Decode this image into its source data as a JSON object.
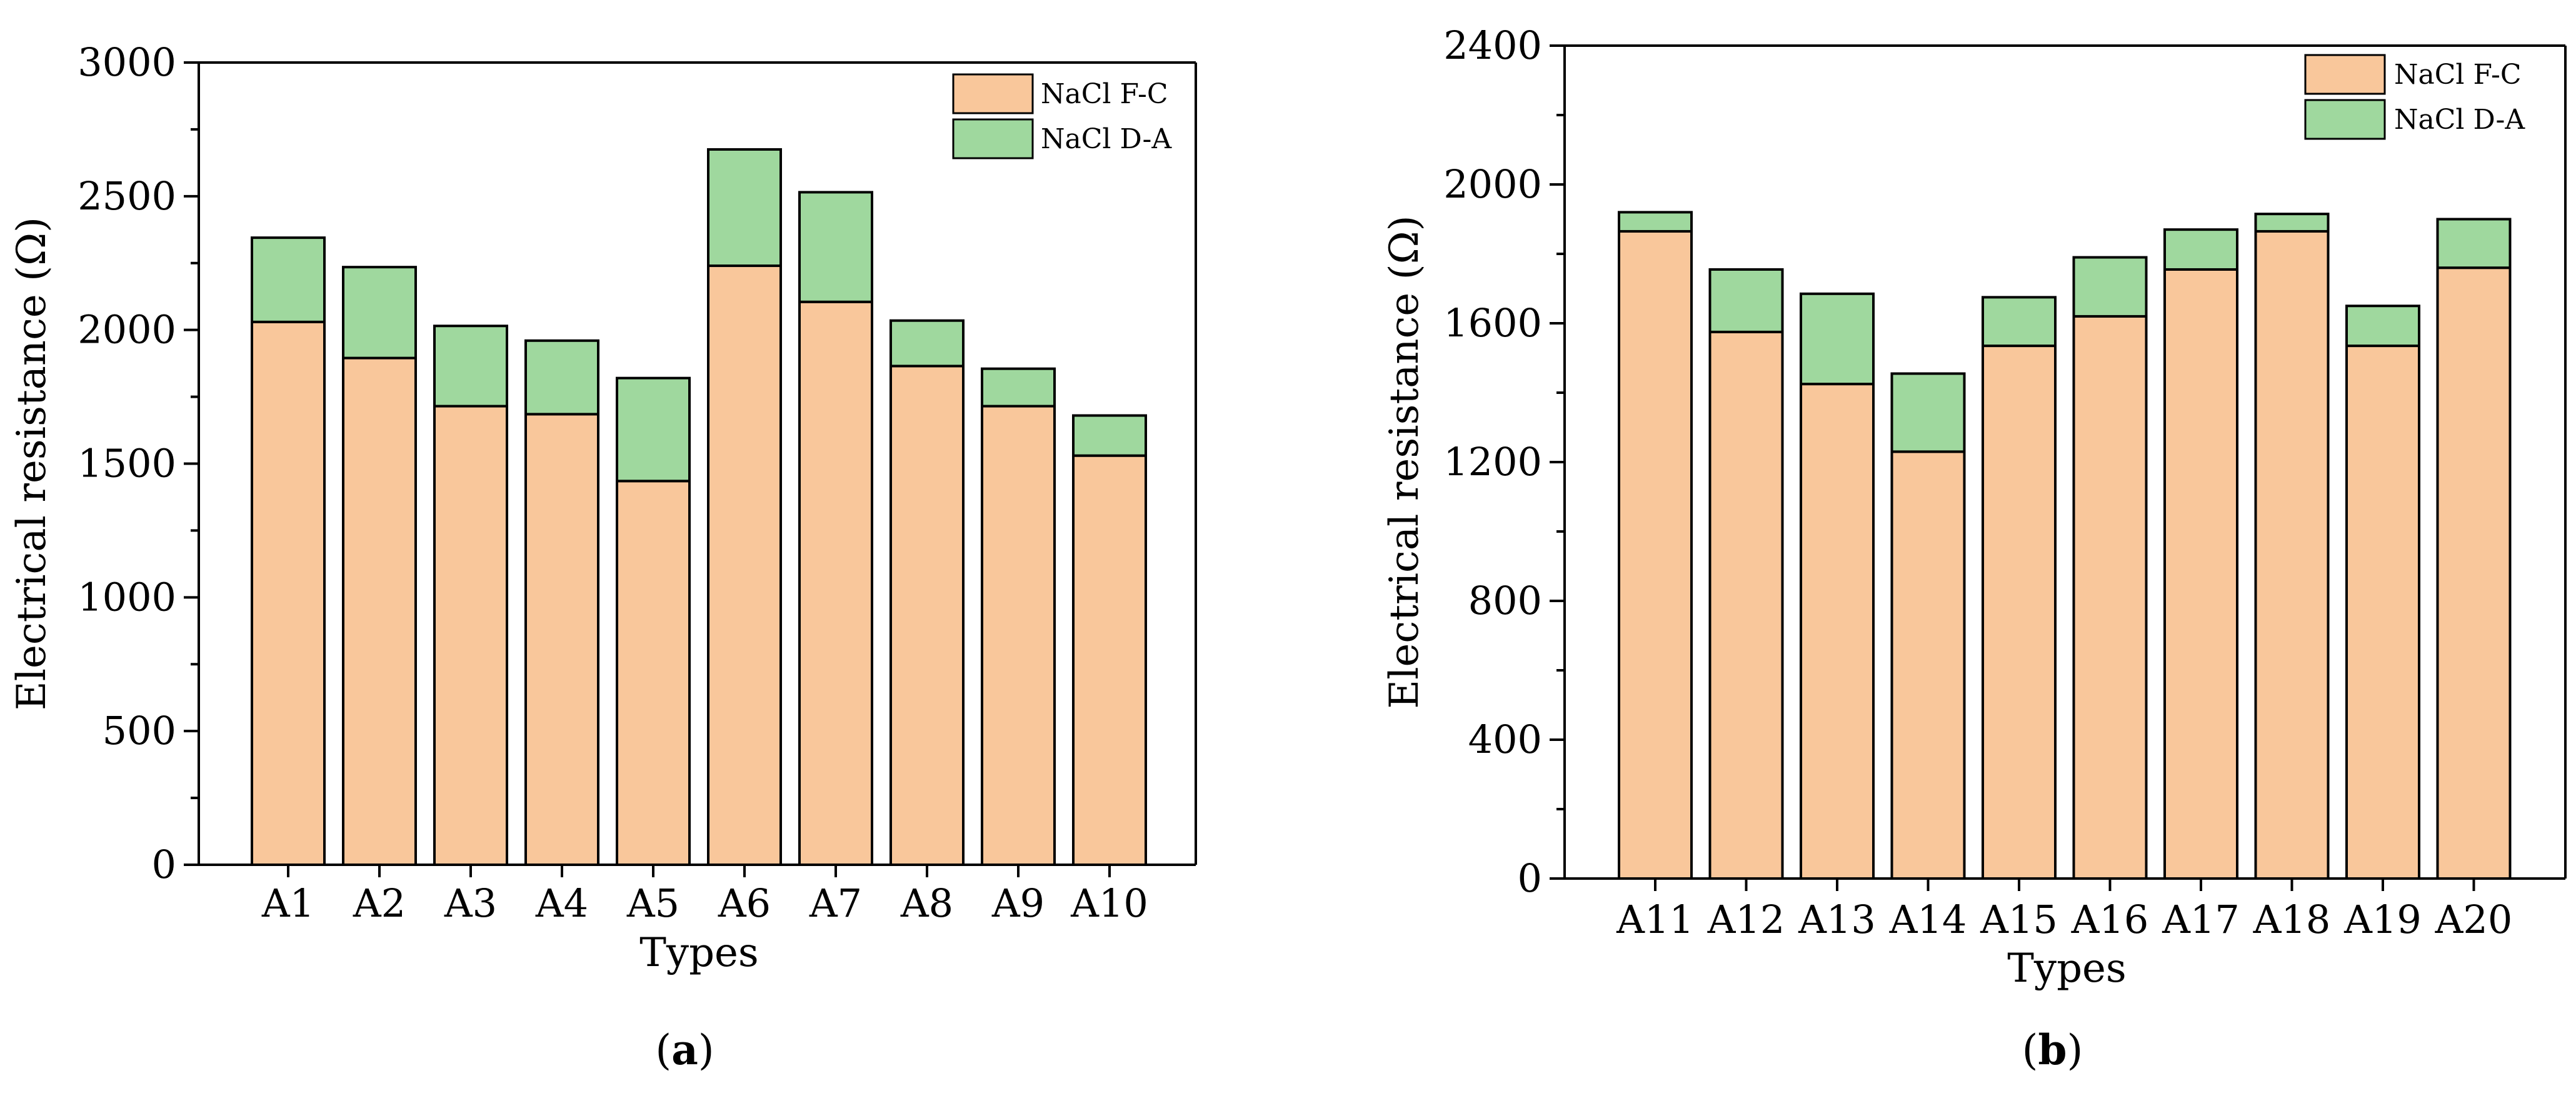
{
  "colors": {
    "fc": "#f9c79b",
    "da": "#9fd89e",
    "stroke": "#000000"
  },
  "chart_data": [
    {
      "type": "bar",
      "stacked": true,
      "panel_label": {
        "open": "(",
        "letter": "a",
        "close": ")"
      },
      "categories": [
        "A1",
        "A2",
        "A3",
        "A4",
        "A5",
        "A6",
        "A7",
        "A8",
        "A9",
        "A10"
      ],
      "series": [
        {
          "name": "NaCl F-C",
          "values": [
            2030,
            1895,
            1715,
            1685,
            1435,
            2240,
            2105,
            1865,
            1715,
            1530
          ]
        },
        {
          "name": "NaCl D-A",
          "values": [
            315,
            340,
            300,
            275,
            385,
            435,
            410,
            170,
            140,
            150
          ]
        }
      ],
      "xlabel": "Types",
      "ylabel": "Electrical resistance (Ω)",
      "ylim": [
        0,
        3000
      ],
      "yticks": [
        0,
        500,
        1000,
        1500,
        2000,
        2500,
        3000
      ],
      "ytick_labels": [
        "0",
        "500",
        "1000",
        "1500",
        "2000",
        "2500",
        "3000"
      ],
      "legend": "top-right"
    },
    {
      "type": "bar",
      "stacked": true,
      "panel_label": {
        "open": "(",
        "letter": "b",
        "close": ")"
      },
      "categories": [
        "A11",
        "A12",
        "A13",
        "A14",
        "A15",
        "A16",
        "A17",
        "A18",
        "A19",
        "A20"
      ],
      "series": [
        {
          "name": "NaCl F-C",
          "values": [
            1865,
            1575,
            1425,
            1230,
            1535,
            1620,
            1755,
            1865,
            1535,
            1760
          ]
        },
        {
          "name": "NaCl D-A",
          "values": [
            55,
            180,
            260,
            225,
            140,
            170,
            115,
            50,
            115,
            140
          ]
        }
      ],
      "xlabel": "Types",
      "ylabel": "Electrical resistance (Ω)",
      "ylim": [
        0,
        2400
      ],
      "yticks": [
        0,
        400,
        800,
        1200,
        1600,
        2000,
        2400
      ],
      "ytick_labels": [
        "0",
        "400",
        "800",
        "1200",
        "1600",
        "2000",
        "2400"
      ],
      "legend": "top-right"
    }
  ]
}
